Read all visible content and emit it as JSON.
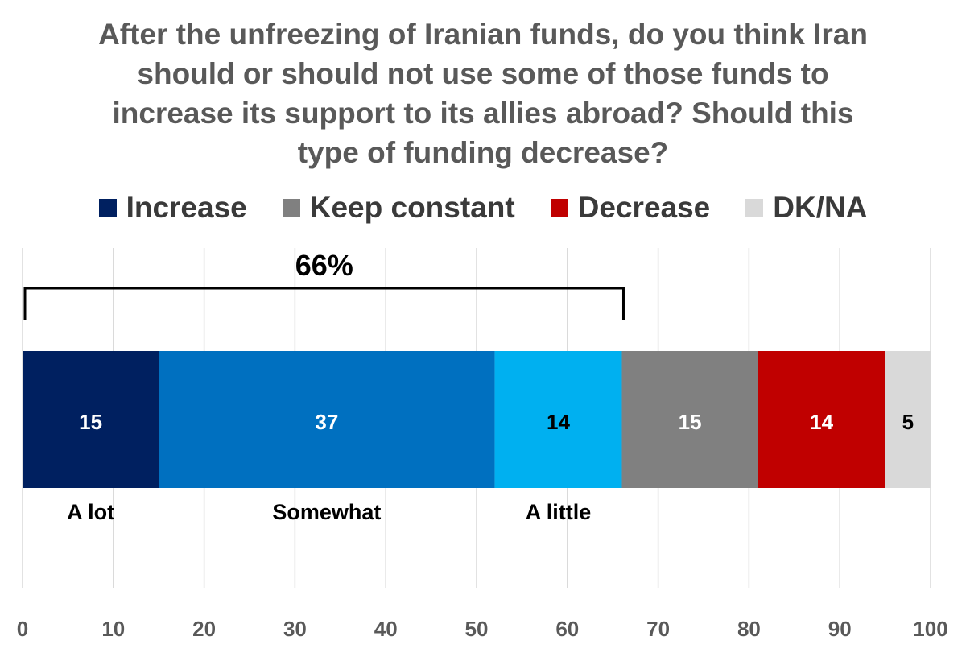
{
  "chart_data": {
    "type": "bar",
    "orientation": "horizontal-stacked",
    "title": "After the unfreezing of Iranian funds, do you think Iran should or should not use some of those funds to increase its support to its allies abroad? Should this type of funding decrease?",
    "legend": [
      {
        "label": "Increase",
        "color": "#002060"
      },
      {
        "label": "Keep constant",
        "color": "#808080"
      },
      {
        "label": "Decrease",
        "color": "#C00000"
      },
      {
        "label": "DK/NA",
        "color": "#D9D9D9"
      }
    ],
    "legend_position": "top",
    "segments": [
      {
        "value": 15,
        "color": "#002060",
        "label_color": "#ffffff",
        "category_label": "A lot"
      },
      {
        "value": 37,
        "color": "#0070C0",
        "label_color": "#ffffff",
        "category_label": "Somewhat"
      },
      {
        "value": 14,
        "color": "#00B0F0",
        "label_color": "#000000",
        "category_label": "A little"
      },
      {
        "value": 15,
        "color": "#808080",
        "label_color": "#ffffff",
        "category_label": ""
      },
      {
        "value": 14,
        "color": "#C00000",
        "label_color": "#ffffff",
        "category_label": ""
      },
      {
        "value": 5,
        "color": "#D9D9D9",
        "label_color": "#000000",
        "category_label": ""
      }
    ],
    "bracket": {
      "from": 0,
      "to": 66,
      "label": "66%"
    },
    "xlim": [
      0,
      100
    ],
    "xticks": [
      0,
      10,
      20,
      30,
      40,
      50,
      60,
      70,
      80,
      90,
      100
    ],
    "grid": true
  }
}
